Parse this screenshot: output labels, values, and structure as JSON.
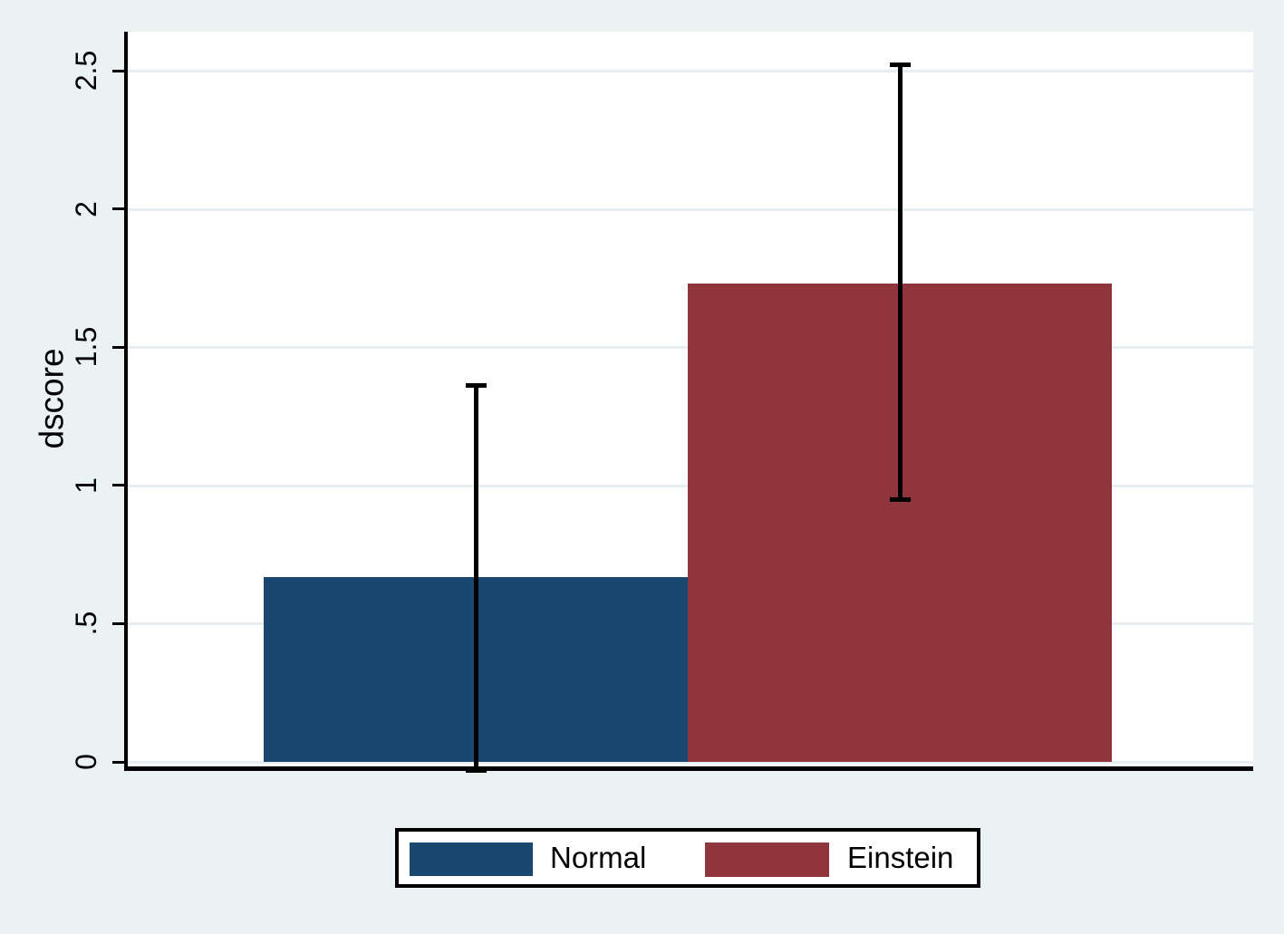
{
  "chart_data": {
    "type": "bar",
    "title": "",
    "ylabel": "dscore",
    "xlabel": "",
    "categories": [
      "Normal",
      "Einstein"
    ],
    "series": [
      {
        "name": "dscore",
        "values": [
          0.67,
          1.73
        ],
        "ci_low": [
          -0.03,
          0.95
        ],
        "ci_high": [
          1.36,
          2.52
        ],
        "bar_colors": [
          "#1a476f",
          "#90353b"
        ]
      }
    ],
    "error_bars": true,
    "grid": true,
    "ylim": [
      0,
      2.64
    ],
    "y_ticks": [
      {
        "value": 0,
        "label": "0"
      },
      {
        "value": 0.5,
        "label": ".5"
      },
      {
        "value": 1,
        "label": "1"
      },
      {
        "value": 1.5,
        "label": "1.5"
      },
      {
        "value": 2,
        "label": "2"
      },
      {
        "value": 2.5,
        "label": "2.5"
      }
    ],
    "legend": {
      "position": "bottom",
      "entries": [
        {
          "label": "Normal",
          "color": "#1a476f"
        },
        {
          "label": "Einstein",
          "color": "#90353b"
        }
      ]
    },
    "colors": {
      "page_background": "#eaf2f3",
      "plot_background": "#ffffff",
      "gridline": "#e7eef2",
      "axis": "#000000",
      "error_bar": "#000000",
      "legend_background": "#ffffff",
      "legend_border": "#000000",
      "text": "#000000"
    }
  }
}
